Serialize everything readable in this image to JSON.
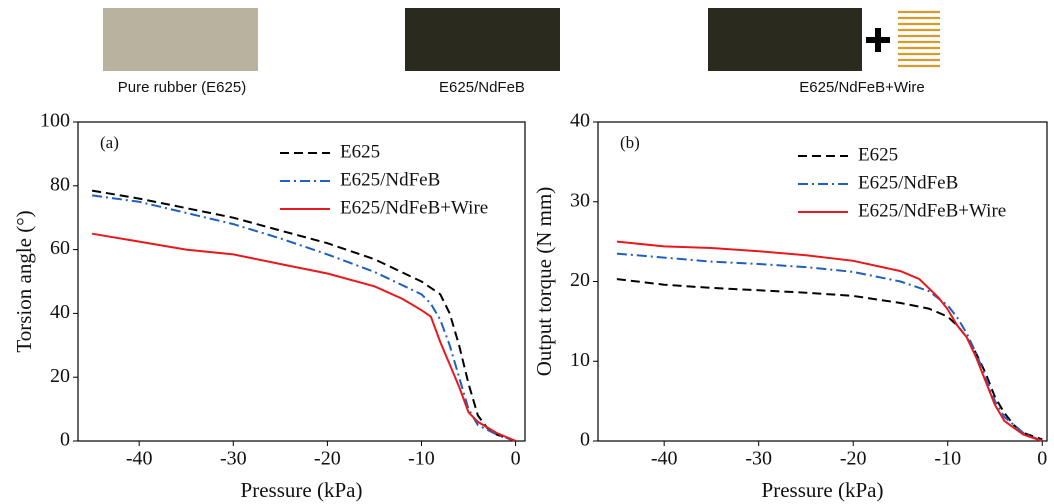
{
  "header_images": [
    {
      "label": "Pure rubber (E625)"
    },
    {
      "label": "E625/NdFeB"
    },
    {
      "label": "E625/NdFeB+Wire"
    }
  ],
  "chart_data": [
    {
      "type": "line",
      "annotation": "(a)",
      "xlabel": "Pressure (kPa)",
      "ylabel": "Torsion angle (°)",
      "xlim": [
        -46.5,
        1
      ],
      "ylim": [
        0,
        100
      ],
      "xticks": [
        -40,
        -30,
        -20,
        -10,
        0
      ],
      "yticks": [
        0,
        20,
        40,
        60,
        80,
        100
      ],
      "legend": "upper right",
      "series": [
        {
          "name": "E625",
          "color": "#000000",
          "dash": "dashed",
          "x": [
            -45,
            -40,
            -35,
            -30,
            -25,
            -20,
            -15,
            -10,
            -8,
            -7,
            -6,
            -5,
            -4,
            -3,
            -2,
            0
          ],
          "values": [
            78.5,
            76,
            73,
            70,
            66,
            62,
            57,
            50,
            46,
            40,
            30,
            18,
            8,
            4,
            2,
            0
          ]
        },
        {
          "name": "E625/NdFeB",
          "color": "#1f5fbf",
          "dash": "dashdot",
          "x": [
            -45,
            -40,
            -35,
            -30,
            -25,
            -20,
            -15,
            -10,
            -9,
            -8,
            -7,
            -6,
            -5,
            -4,
            -2,
            0
          ],
          "values": [
            77,
            75,
            71.5,
            68,
            63.5,
            58.5,
            53,
            46,
            43,
            38,
            30,
            20,
            10,
            5,
            2,
            0
          ]
        },
        {
          "name": "E625/NdFeB+Wire",
          "color": "#e8191c",
          "dash": "solid",
          "x": [
            -45,
            -40,
            -35,
            -30,
            -25,
            -20,
            -15,
            -12,
            -10,
            -9,
            -8,
            -7,
            -6,
            -5,
            -4,
            -2,
            0
          ],
          "values": [
            65,
            62.5,
            60,
            58.5,
            55.5,
            52.5,
            48.5,
            44.5,
            41,
            39,
            31,
            24,
            17,
            9,
            6,
            2.5,
            0
          ]
        }
      ]
    },
    {
      "type": "line",
      "annotation": "(b)",
      "xlabel": "Pressure (kPa)",
      "ylabel": "Output torque (N mm)",
      "xlim": [
        -47,
        0.5
      ],
      "ylim": [
        0,
        40
      ],
      "xticks": [
        -40,
        -30,
        -20,
        -10,
        0
      ],
      "yticks": [
        0,
        10,
        20,
        30,
        40
      ],
      "legend": "upper right",
      "series": [
        {
          "name": "E625",
          "color": "#000000",
          "dash": "dashed",
          "x": [
            -45,
            -40,
            -35,
            -30,
            -25,
            -20,
            -15,
            -12,
            -10,
            -9,
            -8,
            -7,
            -6,
            -5,
            -4,
            -3,
            -2,
            0
          ],
          "values": [
            20.3,
            19.6,
            19.2,
            18.9,
            18.6,
            18.2,
            17.3,
            16.6,
            15.6,
            14.5,
            13,
            11,
            8.5,
            5.5,
            3.5,
            2,
            1,
            0.2
          ]
        },
        {
          "name": "E625/NdFeB",
          "color": "#1f5fbf",
          "dash": "dashdot",
          "x": [
            -45,
            -40,
            -35,
            -30,
            -25,
            -20,
            -15,
            -12,
            -10,
            -9,
            -8,
            -7,
            -6,
            -5,
            -4,
            -2,
            0
          ],
          "values": [
            23.5,
            23,
            22.5,
            22.2,
            21.8,
            21.2,
            20,
            18.8,
            17,
            15.5,
            13.5,
            11,
            8,
            5,
            3,
            1,
            0
          ]
        },
        {
          "name": "E625/NdFeB+Wire",
          "color": "#e8191c",
          "dash": "solid",
          "x": [
            -45,
            -40,
            -35,
            -30,
            -25,
            -20,
            -15,
            -13,
            -11,
            -10,
            -9,
            -8,
            -7,
            -6,
            -5,
            -4,
            -2,
            0
          ],
          "values": [
            25,
            24.4,
            24.2,
            23.8,
            23.3,
            22.6,
            21.3,
            20.3,
            18,
            16.5,
            14.5,
            13,
            10.5,
            7.5,
            4.5,
            2.5,
            0.8,
            0
          ]
        }
      ]
    }
  ]
}
